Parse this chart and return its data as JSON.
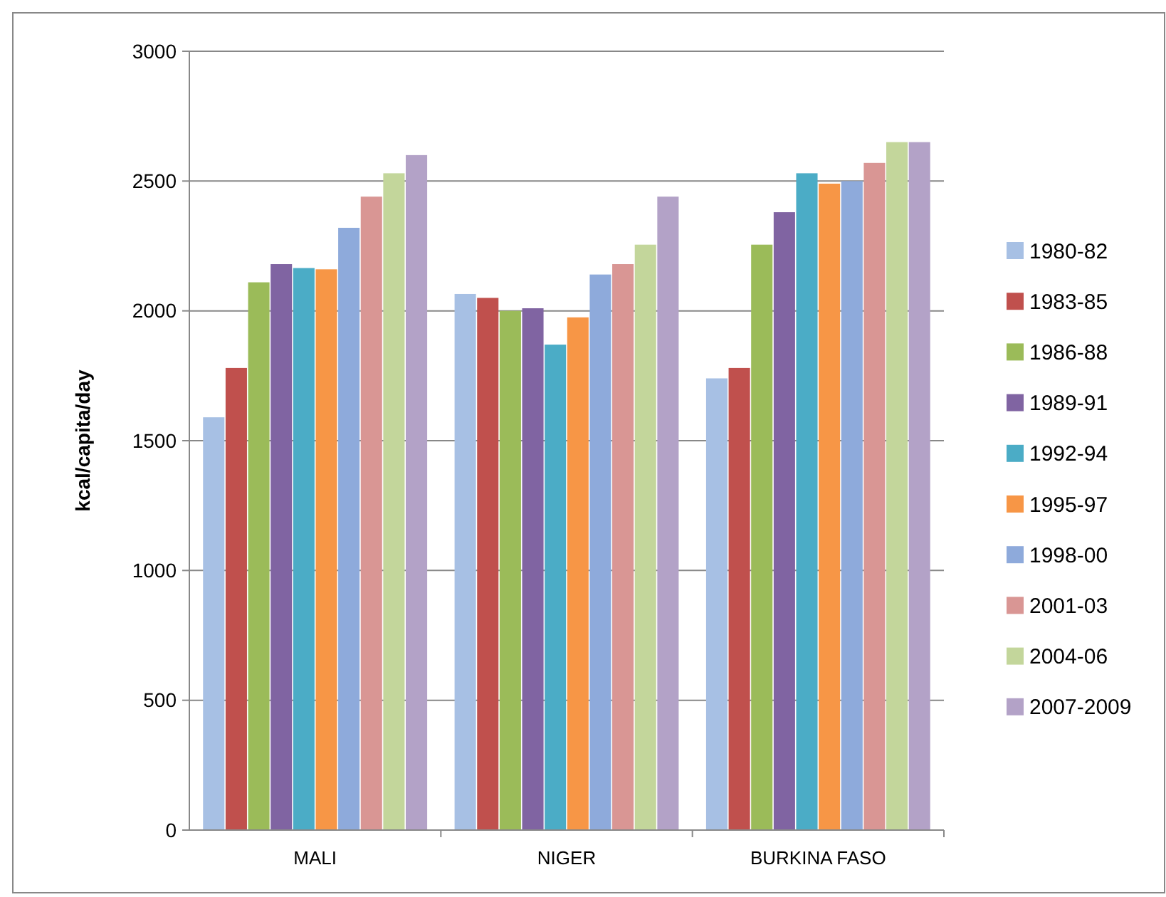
{
  "chart_data": {
    "type": "bar",
    "ylabel": "kcal/capita/day",
    "categories": [
      "MALI",
      "NIGER",
      "BURKINA FASO"
    ],
    "ylim": [
      0,
      3000
    ],
    "yticks": [
      0,
      500,
      1000,
      1500,
      2000,
      2500,
      3000
    ],
    "grid": "y",
    "legend": "right",
    "series": [
      {
        "name": "1980-82",
        "color": "#a7c0e4",
        "values": [
          1590,
          2065,
          1740
        ]
      },
      {
        "name": "1983-85",
        "color": "#c0504d",
        "values": [
          1780,
          2050,
          1780
        ]
      },
      {
        "name": "1986-88",
        "color": "#9bbb59",
        "values": [
          2110,
          2000,
          2255
        ]
      },
      {
        "name": "1989-91",
        "color": "#8064a2",
        "values": [
          2180,
          2010,
          2380
        ]
      },
      {
        "name": "1992-94",
        "color": "#4bacc6",
        "values": [
          2165,
          1870,
          2530
        ]
      },
      {
        "name": "1995-97",
        "color": "#f79646",
        "values": [
          2160,
          1975,
          2490
        ]
      },
      {
        "name": "1998-00",
        "color": "#8eaadb",
        "values": [
          2320,
          2140,
          2500
        ]
      },
      {
        "name": "2001-03",
        "color": "#d99694",
        "values": [
          2440,
          2180,
          2570
        ]
      },
      {
        "name": "2004-06",
        "color": "#c3d69b",
        "values": [
          2530,
          2255,
          2650
        ]
      },
      {
        "name": "2007-2009",
        "color": "#b3a2c7",
        "values": [
          2600,
          2440,
          2650
        ]
      }
    ]
  }
}
